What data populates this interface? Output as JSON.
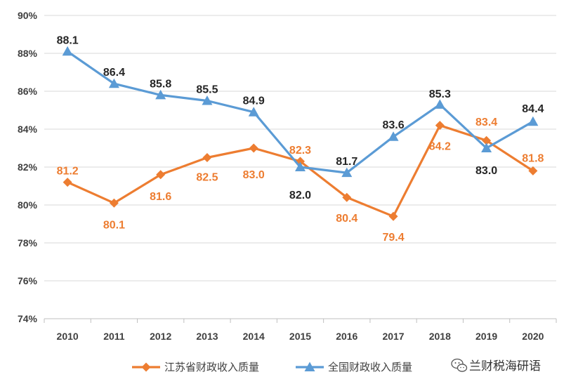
{
  "chart_data": {
    "type": "line",
    "categories": [
      "2010",
      "2011",
      "2012",
      "2013",
      "2014",
      "2015",
      "2016",
      "2017",
      "2018",
      "2019",
      "2020"
    ],
    "ylim": [
      74,
      90
    ],
    "yticks": [
      74,
      76,
      78,
      80,
      82,
      84,
      86,
      88,
      90
    ],
    "ytick_labels": [
      "74%",
      "76%",
      "78%",
      "80%",
      "82%",
      "84%",
      "86%",
      "88%",
      "90%"
    ],
    "grid": true,
    "legend_position": "bottom",
    "series": [
      {
        "name": "江苏省财政收入质量",
        "color": "#ED7D31",
        "marker": "diamond",
        "values": [
          81.2,
          80.1,
          81.6,
          82.5,
          83.0,
          82.3,
          80.4,
          79.4,
          84.2,
          83.4,
          81.8
        ],
        "labels": [
          "81.2",
          "80.1",
          "81.6",
          "82.5",
          "83.0",
          "82.3",
          "80.4",
          "79.4",
          "84.2",
          "83.4",
          "81.8"
        ]
      },
      {
        "name": "全国财政收入质量",
        "color": "#5B9BD5",
        "marker": "triangle",
        "values": [
          88.1,
          86.4,
          85.8,
          85.5,
          84.9,
          82.0,
          81.7,
          83.6,
          85.3,
          83.0,
          84.4
        ],
        "labels": [
          "88.1",
          "86.4",
          "85.8",
          "85.5",
          "84.9",
          "82.0",
          "81.7",
          "83.6",
          "85.3",
          "83.0",
          "84.4"
        ],
        "label_color": "#262626"
      }
    ]
  },
  "watermark": {
    "text": "兰财税海研语",
    "icon": "wechat-icon"
  }
}
